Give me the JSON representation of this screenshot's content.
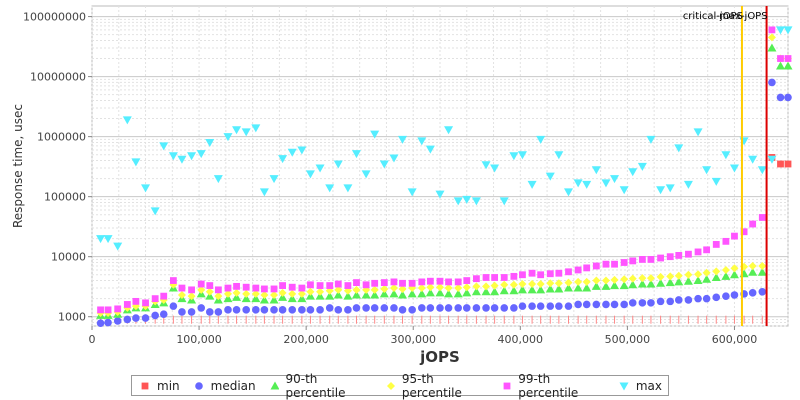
{
  "chart_data": {
    "type": "scatter",
    "xlabel": "jOPS",
    "ylabel": "Response time, usec",
    "xlim": [
      0,
      650000
    ],
    "ylim": [
      700,
      150000000
    ],
    "y_scale": "log",
    "grid": true,
    "legend_position": "bottom",
    "x_ticks": [
      {
        "value": 0,
        "label": "0"
      },
      {
        "value": 100000,
        "label": "100,000"
      },
      {
        "value": 200000,
        "label": "200,000"
      },
      {
        "value": 300000,
        "label": "300,000"
      },
      {
        "value": 400000,
        "label": "400,000"
      },
      {
        "value": 500000,
        "label": "500,000"
      },
      {
        "value": 600000,
        "label": "600,000"
      }
    ],
    "y_ticks": [
      {
        "value": 1000,
        "label": "1000"
      },
      {
        "value": 10000,
        "label": "10000"
      },
      {
        "value": 100000,
        "label": "100000"
      },
      {
        "value": 1000000,
        "label": "1000000"
      },
      {
        "value": 10000000,
        "label": "10000000"
      },
      {
        "value": 100000000,
        "label": "100000000"
      }
    ],
    "markers": [
      {
        "label": "critical-jOPS",
        "x": 607000,
        "color": "#ffcc00"
      },
      {
        "label": "max-jOPS",
        "x": 630000,
        "color": "#dd0000"
      }
    ],
    "x": [
      8000,
      15000,
      24000,
      33000,
      41000,
      50000,
      59000,
      67000,
      76000,
      84000,
      93000,
      102000,
      110000,
      118000,
      127000,
      135000,
      144000,
      153000,
      161000,
      170000,
      178000,
      187000,
      196000,
      204000,
      213000,
      222000,
      230000,
      239000,
      247000,
      256000,
      264000,
      273000,
      282000,
      290000,
      299000,
      308000,
      316000,
      325000,
      333000,
      342000,
      350000,
      359000,
      368000,
      376000,
      385000,
      394000,
      402000,
      411000,
      419000,
      428000,
      436000,
      445000,
      454000,
      462000,
      471000,
      480000,
      488000,
      497000,
      505000,
      514000,
      522000,
      531000,
      540000,
      548000,
      557000,
      566000,
      574000,
      583000,
      592000,
      600000,
      609000,
      617000,
      626000,
      635000,
      643000,
      650000
    ],
    "series": [
      {
        "name": "min",
        "color": "#ff5555",
        "shape": "square",
        "values": [
          1000,
          1000,
          1000,
          1000,
          1000,
          1000,
          1000,
          1000,
          1000,
          1000,
          1000,
          1000,
          1000,
          1000,
          1000,
          1000,
          1000,
          1000,
          1000,
          1000,
          1000,
          1000,
          1000,
          1000,
          1000,
          1000,
          1000,
          1000,
          1000,
          1000,
          1000,
          1000,
          1000,
          1000,
          1000,
          1000,
          1000,
          1000,
          1000,
          1000,
          1000,
          1000,
          1000,
          1000,
          1000,
          1000,
          1000,
          1000,
          1000,
          1000,
          1000,
          1000,
          1000,
          1000,
          1000,
          1000,
          1000,
          1000,
          1000,
          1000,
          1000,
          1000,
          1000,
          1000,
          1000,
          1000,
          1000,
          1000,
          1000,
          1000,
          1000,
          1000,
          1000,
          450000,
          350000,
          350000
        ]
      },
      {
        "name": "median",
        "color": "#6666ff",
        "shape": "circle",
        "values": [
          780,
          800,
          850,
          900,
          950,
          950,
          1050,
          1100,
          1500,
          1200,
          1200,
          1400,
          1200,
          1200,
          1300,
          1300,
          1300,
          1300,
          1300,
          1300,
          1300,
          1300,
          1300,
          1300,
          1300,
          1400,
          1300,
          1300,
          1400,
          1400,
          1400,
          1400,
          1400,
          1300,
          1300,
          1400,
          1400,
          1400,
          1400,
          1400,
          1400,
          1400,
          1400,
          1400,
          1400,
          1400,
          1500,
          1500,
          1500,
          1500,
          1500,
          1500,
          1600,
          1600,
          1600,
          1600,
          1600,
          1600,
          1700,
          1700,
          1700,
          1800,
          1800,
          1900,
          1900,
          2000,
          2000,
          2100,
          2200,
          2300,
          2400,
          2500,
          2600,
          8000000,
          4500000,
          4500000
        ]
      },
      {
        "name": "90-th percentile",
        "color": "#55ee55",
        "shape": "triangle-up",
        "values": [
          1050,
          1050,
          1100,
          1300,
          1400,
          1400,
          1600,
          1700,
          3000,
          2000,
          1900,
          2400,
          2200,
          1900,
          2000,
          2100,
          2000,
          2000,
          1900,
          1900,
          2100,
          2000,
          2000,
          2200,
          2200,
          2200,
          2300,
          2200,
          2300,
          2300,
          2300,
          2400,
          2400,
          2300,
          2400,
          2400,
          2500,
          2500,
          2400,
          2400,
          2500,
          2600,
          2600,
          2600,
          2700,
          2700,
          2800,
          2800,
          2800,
          2900,
          2900,
          3000,
          3000,
          3000,
          3200,
          3200,
          3300,
          3300,
          3400,
          3500,
          3500,
          3600,
          3700,
          3800,
          3900,
          4000,
          4200,
          4500,
          4700,
          5000,
          5200,
          5500,
          5500,
          30000000,
          15000000,
          15000000
        ]
      },
      {
        "name": "95-th percentile",
        "color": "#ffff44",
        "shape": "diamond",
        "values": [
          1150,
          1150,
          1200,
          1400,
          1500,
          1500,
          1800,
          1900,
          3400,
          2300,
          2200,
          2800,
          2600,
          2200,
          2400,
          2500,
          2400,
          2400,
          2300,
          2300,
          2500,
          2400,
          2400,
          2600,
          2600,
          2700,
          2800,
          2700,
          2800,
          2800,
          2800,
          2900,
          3000,
          2900,
          3000,
          3000,
          3100,
          3100,
          3000,
          3000,
          3100,
          3200,
          3200,
          3300,
          3400,
          3400,
          3500,
          3500,
          3500,
          3600,
          3600,
          3700,
          3800,
          3800,
          4000,
          4000,
          4100,
          4200,
          4300,
          4400,
          4400,
          4600,
          4700,
          4800,
          5000,
          5100,
          5400,
          5700,
          6000,
          6400,
          6800,
          7000,
          7000,
          45000000,
          20000000,
          20000000
        ]
      },
      {
        "name": "99-th percentile",
        "color": "#ff55ff",
        "shape": "square",
        "values": [
          1300,
          1300,
          1350,
          1600,
          1800,
          1700,
          2000,
          2200,
          4000,
          3000,
          2800,
          3500,
          3300,
          2800,
          3000,
          3200,
          3100,
          3000,
          2900,
          2900,
          3300,
          3100,
          3000,
          3400,
          3300,
          3300,
          3500,
          3300,
          3700,
          3400,
          3600,
          3700,
          3800,
          3600,
          3600,
          3800,
          3900,
          3900,
          3800,
          3800,
          4000,
          4300,
          4500,
          4500,
          4500,
          4700,
          5000,
          5300,
          5000,
          5200,
          5300,
          5600,
          6000,
          6500,
          7000,
          7500,
          7500,
          8000,
          8500,
          9000,
          9000,
          9500,
          10000,
          10500,
          11000,
          12000,
          13000,
          16000,
          18000,
          22000,
          26000,
          35000,
          45000,
          60000000,
          20000000,
          20000000
        ]
      },
      {
        "name": "max",
        "color": "#55eeff",
        "shape": "triangle-down",
        "values": [
          20000,
          20000,
          15000,
          1900000,
          380000,
          140000,
          58000,
          700000,
          480000,
          420000,
          480000,
          520000,
          800000,
          200000,
          1000000,
          1300000,
          1200000,
          1400000,
          120000,
          200000,
          430000,
          550000,
          600000,
          240000,
          300000,
          140000,
          350000,
          140000,
          520000,
          240000,
          1100000,
          350000,
          440000,
          900000,
          120000,
          850000,
          620000,
          110000,
          1300000,
          85000,
          90000,
          85000,
          340000,
          300000,
          85000,
          480000,
          500000,
          160000,
          900000,
          220000,
          500000,
          120000,
          170000,
          160000,
          280000,
          170000,
          200000,
          130000,
          260000,
          320000,
          900000,
          130000,
          140000,
          650000,
          160000,
          1200000,
          280000,
          180000,
          500000,
          300000,
          850000,
          420000,
          280000,
          420000,
          60000000,
          60000000
        ]
      }
    ]
  }
}
